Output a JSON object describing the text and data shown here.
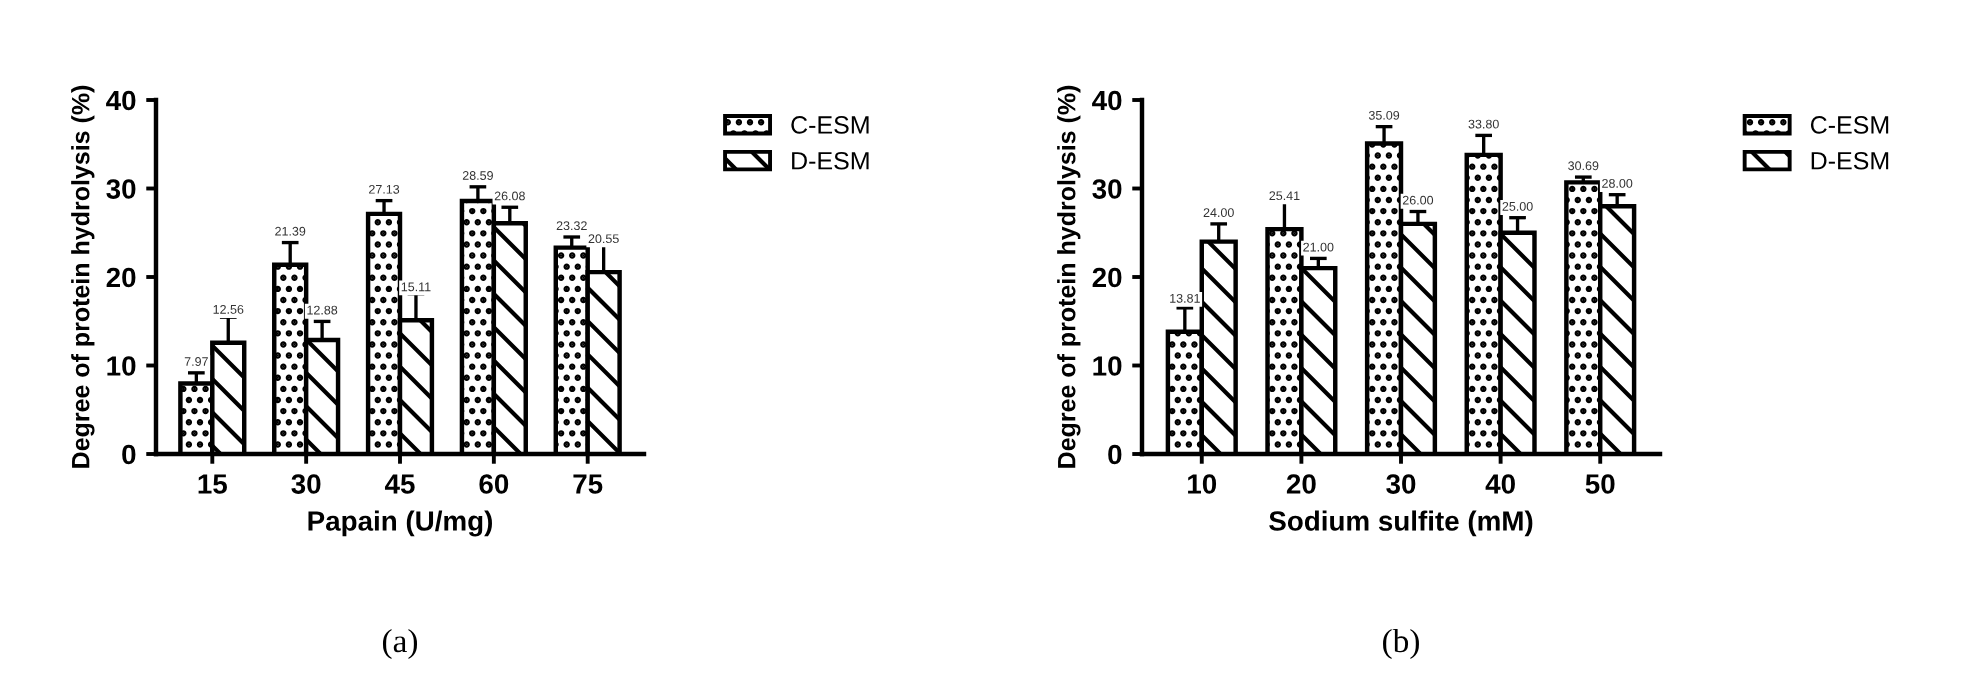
{
  "chart_data": [
    {
      "type": "bar",
      "xlabel": "Papain (U/mg)",
      "ylabel": "Degree of protein hydrolysis (%)",
      "categories": [
        "15",
        "30",
        "45",
        "60",
        "75"
      ],
      "ylim": [
        0,
        40
      ],
      "yticks": [
        0,
        10,
        20,
        30,
        40
      ],
      "grid": false,
      "legend": "top right",
      "annotations": [
        "(a)"
      ],
      "series": [
        {
          "name": "C-ESM",
          "color": "#000000",
          "values": [
            7.97,
            21.39,
            27.13,
            28.59,
            23.32
          ],
          "errors": [
            1.2,
            2.5,
            1.5,
            1.6,
            1.2
          ],
          "value_labels": [
            "7.97",
            "21.39",
            "27.13",
            "28.59",
            "23.32"
          ]
        },
        {
          "name": "D-ESM",
          "color": "#000000",
          "values": [
            12.56,
            12.88,
            15.11,
            26.08,
            20.55
          ],
          "errors": [
            2.9,
            2.1,
            3.0,
            1.8,
            3.3
          ],
          "value_labels": [
            "12.56",
            "12.88",
            "15.11",
            "26.08",
            "20.55"
          ]
        }
      ]
    },
    {
      "type": "bar",
      "xlabel": "Sodium sulfite (mM)",
      "ylabel": "Degree of protein hydrolysis (%)",
      "categories": [
        "10",
        "20",
        "30",
        "40",
        "50"
      ],
      "ylim": [
        0,
        40
      ],
      "yticks": [
        0,
        10,
        20,
        30,
        40
      ],
      "grid": false,
      "legend": "top right",
      "annotations": [
        "(b)"
      ],
      "series": [
        {
          "name": "C-ESM",
          "color": "#000000",
          "values": [
            13.81,
            25.41,
            35.09,
            33.8,
            30.69
          ],
          "errors": [
            2.7,
            4.1,
            1.9,
            2.2,
            0.6
          ],
          "value_labels": [
            "13.81",
            "25.41",
            "35.09",
            "33.80",
            "30.69"
          ]
        },
        {
          "name": "D-ESM",
          "color": "#000000",
          "values": [
            24,
            21,
            26,
            25,
            28
          ],
          "errors": [
            2.0,
            1.1,
            1.4,
            1.7,
            1.3
          ],
          "value_labels": [
            "24.00",
            "21.00",
            "26.00",
            "25.00",
            "28.00"
          ]
        }
      ]
    }
  ]
}
